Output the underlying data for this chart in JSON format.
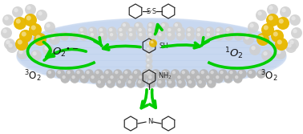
{
  "bg_color": "#ffffff",
  "polymer_color": "#b8cce8",
  "polymer_color2": "#c8d8f0",
  "sphere_gray": "#b8b8b8",
  "sphere_gray_light": "#d0d0d0",
  "sphere_gray_dark": "#909090",
  "sphere_yellow": "#e8b800",
  "sphere_yellow_light": "#f5d040",
  "arrow_color": "#00cc00",
  "text_color": "#111111",
  "figsize": [
    3.78,
    1.67
  ],
  "dpi": 100,
  "labels": {
    "left_O2_triplet": "$^3$O$_2$",
    "left_superoxide": "O$_2$$^{\\bullet -}$",
    "right_singlet": "$^1$O$_2$",
    "right_O2_triplet": "$^3$O$_2$",
    "amine": "NH$_2$",
    "thiol": "SH",
    "disulfide": "S·S"
  }
}
